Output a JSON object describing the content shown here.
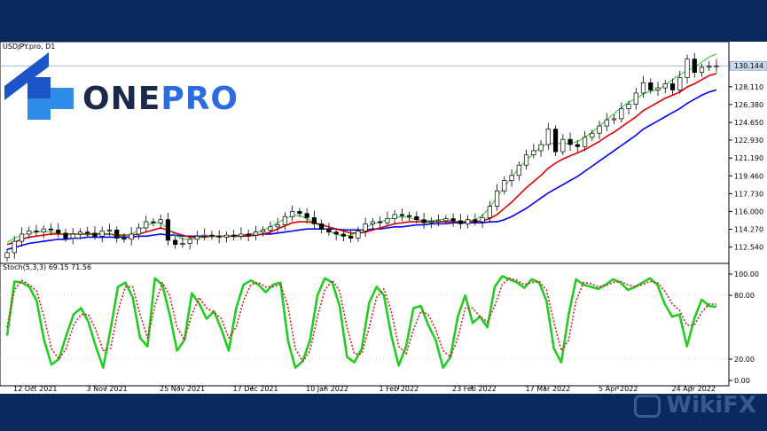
{
  "symbol": "USDJPY.pro, D1",
  "logo": {
    "part1": "ONE",
    "part2": "PRO"
  },
  "watermark": "WikiFX",
  "chart_data": [
    {
      "type": "candlestick",
      "series": [
        {
          "name": "price",
          "values": [
            112.0,
            113.1,
            113.8,
            114.1,
            114.0,
            114.3,
            114.2,
            113.9,
            113.4,
            113.8,
            114.0,
            113.9,
            113.6,
            114.1,
            114.2,
            113.4,
            113.3,
            113.8,
            114.4,
            115.0,
            114.9,
            115.2,
            113.2,
            112.8,
            112.9,
            113.3,
            113.6,
            113.7,
            113.6,
            113.5,
            113.7,
            113.6,
            113.8,
            113.7,
            114.0,
            114.2,
            114.5,
            114.7,
            115.5,
            116.0,
            115.8,
            115.4,
            114.8,
            114.3,
            114.0,
            113.8,
            113.6,
            113.4,
            114.1,
            114.8,
            115.0,
            114.9,
            115.3,
            115.7,
            115.6,
            115.5,
            115.2,
            114.9,
            115.0,
            115.1,
            115.3,
            115.1,
            114.8,
            115.2,
            115.0,
            115.4,
            116.5,
            118.0,
            119.0,
            119.5,
            120.5,
            121.5,
            121.9,
            122.5,
            124.0,
            121.8,
            123.0,
            122.5,
            122.3,
            123.2,
            123.6,
            124.3,
            124.9,
            125.0,
            126.0,
            126.4,
            127.5,
            128.5,
            127.8,
            128.0,
            128.4,
            127.8,
            129.0,
            130.8,
            129.5,
            130.0,
            130.1,
            130.144
          ]
        }
      ],
      "moving_averages": [
        {
          "name": "",
          "color": "#0000ff",
          "values": [
            112.3,
            112.5,
            112.7,
            112.9,
            113.0,
            113.1,
            113.2,
            113.3,
            113.3,
            113.4,
            113.4,
            113.5,
            113.5,
            113.5,
            113.5,
            113.5,
            113.5,
            113.5,
            113.6,
            113.6,
            113.7,
            113.8,
            113.7,
            113.7,
            113.6,
            113.6,
            113.6,
            113.6,
            113.6,
            113.6,
            113.6,
            113.6,
            113.6,
            113.7,
            113.7,
            113.8,
            113.8,
            113.9,
            114.0,
            114.1,
            114.2,
            114.3,
            114.3,
            114.3,
            114.3,
            114.3,
            114.2,
            114.2,
            114.2,
            114.2,
            114.3,
            114.3,
            114.4,
            114.5,
            114.5,
            114.6,
            114.7,
            114.7,
            114.8,
            114.8,
            114.8,
            114.9,
            114.9,
            114.9,
            114.9,
            114.9,
            115.0,
            115.0,
            115.2,
            115.5,
            115.9,
            116.3,
            116.8,
            117.3,
            117.8,
            118.2,
            118.6,
            119.0,
            119.4,
            119.9,
            120.4,
            120.9,
            121.4,
            121.9,
            122.4,
            122.9,
            123.4,
            124.0,
            124.4,
            124.8,
            125.2,
            125.6,
            126.0,
            126.5,
            126.9,
            127.3,
            127.6,
            127.8
          ]
        },
        {
          "name": "",
          "color": "#e00000",
          "values": [
            112.8,
            113.0,
            113.3,
            113.5,
            113.6,
            113.7,
            113.8,
            113.8,
            113.8,
            113.8,
            113.8,
            113.8,
            113.8,
            113.8,
            113.8,
            113.7,
            113.7,
            113.7,
            113.8,
            114.0,
            114.2,
            114.4,
            114.2,
            113.9,
            113.7,
            113.5,
            113.5,
            113.5,
            113.6,
            113.6,
            113.6,
            113.6,
            113.6,
            113.6,
            113.7,
            113.8,
            114.0,
            114.3,
            114.6,
            114.9,
            115.0,
            115.0,
            114.9,
            114.7,
            114.5,
            114.3,
            114.1,
            113.9,
            113.9,
            114.0,
            114.2,
            114.4,
            114.6,
            114.8,
            114.9,
            115.0,
            115.0,
            115.0,
            115.0,
            115.0,
            115.0,
            115.0,
            115.0,
            115.0,
            115.0,
            115.1,
            115.3,
            115.7,
            116.3,
            116.9,
            117.6,
            118.3,
            118.9,
            119.5,
            120.2,
            120.7,
            121.1,
            121.4,
            121.7,
            122.0,
            122.4,
            122.8,
            123.3,
            123.7,
            124.2,
            124.7,
            125.2,
            125.8,
            126.2,
            126.6,
            127.0,
            127.3,
            127.6,
            128.1,
            128.4,
            128.8,
            129.2,
            129.4
          ]
        },
        {
          "name": "",
          "color": "#00cc00",
          "values": [
            113.0,
            113.4,
            113.7,
            113.9,
            114.0,
            114.1,
            114.0,
            113.9,
            113.8,
            113.8,
            113.8,
            113.7,
            113.8,
            113.9,
            113.8,
            113.6,
            113.6,
            113.8,
            114.2,
            114.6,
            114.9,
            114.9,
            114.3,
            113.7,
            113.3,
            113.3,
            113.4,
            113.6,
            113.6,
            113.6,
            113.6,
            113.7,
            113.7,
            113.8,
            113.9,
            114.2,
            114.5,
            114.9,
            115.3,
            115.6,
            115.6,
            115.3,
            114.9,
            114.5,
            114.1,
            113.8,
            113.6,
            113.7,
            114.0,
            114.4,
            114.8,
            115.0,
            115.2,
            115.4,
            115.5,
            115.4,
            115.2,
            115.1,
            115.1,
            115.2,
            115.2,
            115.1,
            115.0,
            115.1,
            115.2,
            115.6,
            116.4,
            117.4,
            118.4,
            119.3,
            120.2,
            121.0,
            121.6,
            122.3,
            122.6,
            122.6,
            122.6,
            122.6,
            122.8,
            123.2,
            123.7,
            124.3,
            124.9,
            125.5,
            126.1,
            126.6,
            127.0,
            127.4,
            127.7,
            127.8,
            128.3,
            128.8,
            129.3,
            129.7,
            130.0,
            130.5,
            131.0,
            131.3
          ]
        }
      ],
      "y_ticks": [
        "130.144",
        "128.110",
        "126.380",
        "124.650",
        "122.930",
        "121.190",
        "119.460",
        "117.730",
        "116.000",
        "114.270",
        "112.540"
      ],
      "last_price": "130.144",
      "ylim": [
        111.3,
        131.8
      ],
      "grid": false
    },
    {
      "type": "line",
      "label": "Stoch(5,3,3) 69.15 71.56",
      "series": [
        {
          "name": "",
          "color": "#22cc22",
          "style": "solid",
          "values": [
            42,
            93,
            92,
            88,
            75,
            38,
            15,
            20,
            42,
            62,
            68,
            55,
            32,
            12,
            48,
            88,
            92,
            78,
            40,
            32,
            96,
            90,
            62,
            28,
            38,
            82,
            72,
            58,
            65,
            48,
            28,
            68,
            90,
            94,
            90,
            83,
            90,
            92,
            38,
            12,
            18,
            38,
            80,
            96,
            92,
            70,
            22,
            17,
            30,
            73,
            88,
            80,
            42,
            14,
            32,
            68,
            70,
            52,
            38,
            12,
            22,
            60,
            80,
            54,
            60,
            50,
            88,
            98,
            95,
            92,
            87,
            95,
            92,
            75,
            30,
            17,
            62,
            95,
            90,
            88,
            86,
            90,
            95,
            92,
            85,
            88,
            92,
            96,
            90,
            72,
            60,
            62,
            32,
            58,
            76,
            70,
            69.15
          ]
        },
        {
          "name": "",
          "color": "#cc2222",
          "style": "dotted",
          "values": [
            50,
            85,
            94,
            90,
            84,
            60,
            30,
            20,
            30,
            52,
            62,
            62,
            48,
            28,
            30,
            65,
            88,
            88,
            62,
            40,
            70,
            92,
            80,
            50,
            38,
            62,
            78,
            68,
            64,
            58,
            40,
            50,
            75,
            90,
            92,
            88,
            88,
            90,
            70,
            30,
            18,
            28,
            60,
            85,
            94,
            84,
            50,
            25,
            25,
            50,
            78,
            86,
            65,
            32,
            25,
            48,
            65,
            62,
            48,
            28,
            22,
            40,
            68,
            68,
            60,
            55,
            70,
            90,
            96,
            94,
            90,
            92,
            93,
            85,
            55,
            28,
            38,
            75,
            92,
            91,
            88,
            89,
            92,
            93,
            90,
            88,
            90,
            93,
            92,
            84,
            72,
            66,
            52,
            52,
            64,
            72,
            71.56
          ]
        }
      ],
      "y_ticks": [
        "100.00",
        "80.00",
        "20.00",
        "0.00"
      ],
      "ylim": [
        0,
        100
      ]
    }
  ],
  "x_labels": [
    "12 Oct 2021",
    "3 Nov 2021",
    "25 Nov 2021",
    "17 Dec 2021",
    "10 Jan 2022",
    "1 Feb 2022",
    "23 Feb 2022",
    "17 Mar 2022",
    "5 Apr 2022",
    "24 Apr 2022"
  ]
}
